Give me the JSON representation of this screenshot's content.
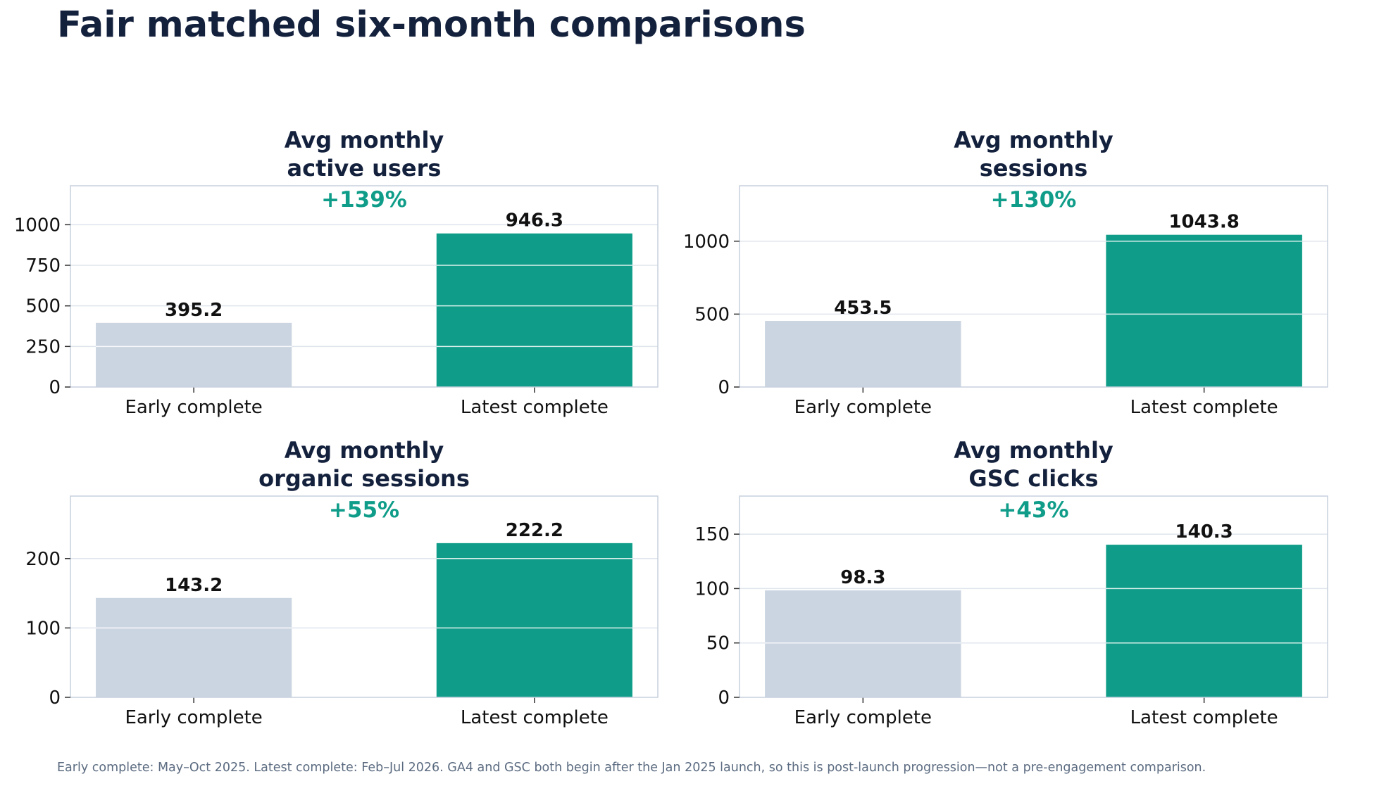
{
  "title": "Fair matched six-month comparisons",
  "footnote": "Early complete: May–Oct 2025. Latest complete: Feb–Jul 2026. GA4 and GSC both begin after the Jan 2025 launch, so this is post-launch progression—not a pre-engagement comparison.",
  "colors": {
    "early": "#cbd5e1",
    "latest": "#0f9d89",
    "title": "#14213d",
    "pct": "#0f9d89",
    "frame": "#c7d0dd",
    "grid": "#dfe5ec"
  },
  "chart_data": [
    {
      "type": "bar",
      "title": [
        "Avg monthly",
        "active users"
      ],
      "change_label": "+139%",
      "categories": [
        "Early complete",
        "Latest complete"
      ],
      "values": [
        395.2,
        946.3
      ],
      "value_labels": [
        "395.2",
        "946.3"
      ],
      "yticks": [
        0,
        250,
        500,
        750,
        1000
      ],
      "ylim": [
        0,
        1240
      ],
      "grid": true
    },
    {
      "type": "bar",
      "title": [
        "Avg monthly",
        "sessions"
      ],
      "change_label": "+130%",
      "categories": [
        "Early complete",
        "Latest complete"
      ],
      "values": [
        453.5,
        1043.8
      ],
      "value_labels": [
        "453.5",
        "1043.8"
      ],
      "yticks": [
        0,
        500,
        1000
      ],
      "ylim": [
        0,
        1380
      ],
      "grid": true
    },
    {
      "type": "bar",
      "title": [
        "Avg monthly",
        "organic sessions"
      ],
      "change_label": "+55%",
      "categories": [
        "Early complete",
        "Latest complete"
      ],
      "values": [
        143.2,
        222.2
      ],
      "value_labels": [
        "143.2",
        "222.2"
      ],
      "yticks": [
        0,
        100,
        200
      ],
      "ylim": [
        0,
        290
      ],
      "grid": true
    },
    {
      "type": "bar",
      "title": [
        "Avg monthly",
        "GSC clicks"
      ],
      "change_label": "+43%",
      "categories": [
        "Early complete",
        "Latest complete"
      ],
      "values": [
        98.3,
        140.3
      ],
      "value_labels": [
        "98.3",
        "140.3"
      ],
      "yticks": [
        0,
        50,
        100,
        150
      ],
      "ylim": [
        0,
        185
      ],
      "grid": true
    }
  ]
}
